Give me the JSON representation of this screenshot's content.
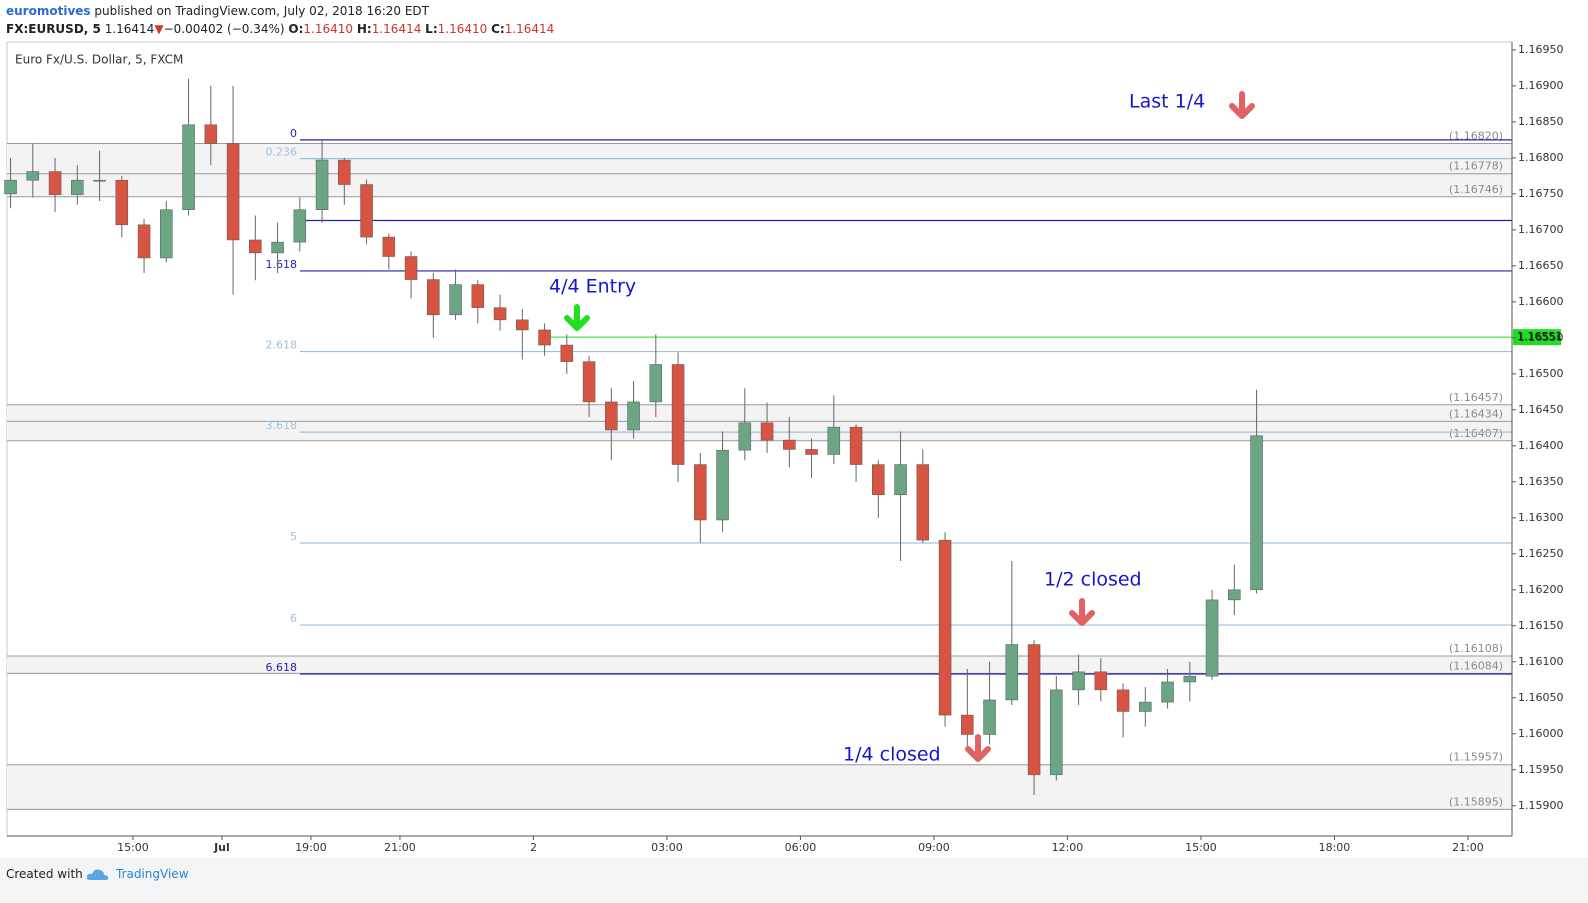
{
  "header": {
    "author": "euromotives",
    "published": "published on TradingView.com, July 02, 2018 16:20 EDT",
    "symbol": "FX:EURUSD, 5",
    "last": "1.16414",
    "change_icon": "▼",
    "change": "−0.00402 (−0.34%)",
    "ohlc": [
      {
        "label": "O:",
        "value": "1.16410"
      },
      {
        "label": "H:",
        "value": "1.16414"
      },
      {
        "label": "L:",
        "value": "1.16410"
      },
      {
        "label": "C:",
        "value": "1.16414"
      }
    ]
  },
  "chart_data": {
    "type": "candlestick",
    "title": "Euro Fx/U.S. Dollar, 5, FXCM",
    "up_color": "#6ba583",
    "down_color": "#d75442",
    "x": [
      -2.75,
      -2.25,
      -1.75,
      -1.25,
      -0.75,
      -0.25,
      0.25,
      0.75,
      1.25,
      1.75,
      2.25,
      2.75,
      3.25,
      3.75,
      4.25,
      4.75,
      5.25,
      5.75,
      6.25,
      6.75,
      7.25,
      7.75,
      8.25,
      8.75,
      9.25,
      9.75,
      10.25,
      10.75,
      11.25,
      11.75,
      12.25,
      12.75,
      13.25,
      13.75,
      14.25,
      14.75,
      15.25,
      15.75,
      16.25,
      16.75,
      17.25,
      17.75,
      18.25,
      18.75,
      19.25,
      19.75,
      20.25,
      20.75,
      21.25,
      21.75,
      22.25,
      22.75,
      23.25,
      23.75,
      24.25,
      24.75,
      25.25
    ],
    "open": [
      1.1675,
      1.16769,
      1.16781,
      1.16749,
      1.16769,
      1.16769,
      1.16707,
      1.16661,
      1.16728,
      1.16846,
      1.1682,
      1.16686,
      1.16668,
      1.16683,
      1.16728,
      1.16797,
      1.16763,
      1.1669,
      1.16663,
      1.16631,
      1.16582,
      1.16624,
      1.16592,
      1.16575,
      1.16561,
      1.1654,
      1.16517,
      1.16461,
      1.16422,
      1.16461,
      1.16513,
      1.16374,
      1.16297,
      1.16394,
      1.16432,
      1.16408,
      1.16395,
      1.16388,
      1.16426,
      1.16374,
      1.16332,
      1.16374,
      1.16269,
      1.16026,
      1.15999,
      1.16047,
      1.16124,
      1.15943,
      1.16061,
      1.16086,
      1.16061,
      1.16031,
      1.16044,
      1.16072,
      1.1608,
      1.16186,
      1.162
    ],
    "high": [
      1.168,
      1.1682,
      1.168,
      1.1679,
      1.1681,
      1.16775,
      1.16715,
      1.1674,
      1.1691,
      1.169,
      1.169,
      1.1672,
      1.1671,
      1.16745,
      1.16825,
      1.168,
      1.1677,
      1.16695,
      1.1667,
      1.1664,
      1.16645,
      1.1663,
      1.1661,
      1.1659,
      1.1657,
      1.16555,
      1.16525,
      1.1648,
      1.1649,
      1.16555,
      1.1653,
      1.1639,
      1.1642,
      1.1648,
      1.1646,
      1.1644,
      1.1641,
      1.1647,
      1.1643,
      1.1638,
      1.1642,
      1.16395,
      1.1628,
      1.1609,
      1.161,
      1.1624,
      1.1613,
      1.1608,
      1.1611,
      1.16105,
      1.1607,
      1.16065,
      1.1609,
      1.161,
      1.162,
      1.16235,
      1.16478
    ],
    "low": [
      1.1673,
      1.16745,
      1.16725,
      1.16735,
      1.1674,
      1.1669,
      1.1664,
      1.16655,
      1.1672,
      1.1679,
      1.1661,
      1.1663,
      1.1664,
      1.1667,
      1.1671,
      1.16735,
      1.1668,
      1.16645,
      1.16605,
      1.1655,
      1.16575,
      1.1657,
      1.1656,
      1.1652,
      1.16525,
      1.165,
      1.1644,
      1.1638,
      1.1641,
      1.1644,
      1.1635,
      1.16265,
      1.1628,
      1.1638,
      1.1639,
      1.1637,
      1.16355,
      1.16375,
      1.1635,
      1.163,
      1.1624,
      1.16265,
      1.1601,
      1.15975,
      1.15985,
      1.1604,
      1.15915,
      1.15935,
      1.1604,
      1.16045,
      1.15995,
      1.1601,
      1.16035,
      1.16045,
      1.16075,
      1.16165,
      1.16195
    ],
    "close": [
      1.16769,
      1.16781,
      1.16749,
      1.16769,
      1.16769,
      1.16707,
      1.16661,
      1.16728,
      1.16846,
      1.1682,
      1.16686,
      1.16668,
      1.16683,
      1.16728,
      1.16797,
      1.16763,
      1.1669,
      1.16663,
      1.16631,
      1.16582,
      1.16624,
      1.16592,
      1.16575,
      1.16561,
      1.1654,
      1.16517,
      1.16461,
      1.16422,
      1.16461,
      1.16513,
      1.16374,
      1.16297,
      1.16394,
      1.16432,
      1.16408,
      1.16395,
      1.16388,
      1.16426,
      1.16374,
      1.16332,
      1.16374,
      1.16269,
      1.16026,
      1.15999,
      1.16047,
      1.16124,
      1.15943,
      1.16061,
      1.16086,
      1.16061,
      1.16031,
      1.16044,
      1.16072,
      1.1608,
      1.16186,
      1.162,
      1.16414
    ],
    "xlim": [
      -2.83,
      30.99
    ],
    "xticks": [
      {
        "value": 0,
        "label": "15:00"
      },
      {
        "value": 2,
        "label": "Jul"
      },
      {
        "value": 4,
        "label": "19:00"
      },
      {
        "value": 6,
        "label": "21:00"
      },
      {
        "value": 9,
        "label": "2"
      },
      {
        "value": 12,
        "label": "03:00"
      },
      {
        "value": 15,
        "label": "06:00"
      },
      {
        "value": 18,
        "label": "09:00"
      },
      {
        "value": 21,
        "label": "12:00"
      },
      {
        "value": 24,
        "label": "15:00"
      },
      {
        "value": 27,
        "label": "18:00"
      },
      {
        "value": 30,
        "label": "21:00"
      }
    ],
    "ylim": [
      1.15858,
      1.16961
    ],
    "yticks": [
      {
        "value": 1.1695,
        "label": "1.16950"
      },
      {
        "value": 1.169,
        "label": "1.16900"
      },
      {
        "value": 1.1685,
        "label": "1.16850"
      },
      {
        "value": 1.168,
        "label": "1.16800"
      },
      {
        "value": 1.1675,
        "label": "1.16750"
      },
      {
        "value": 1.167,
        "label": "1.16700"
      },
      {
        "value": 1.1665,
        "label": "1.16650"
      },
      {
        "value": 1.166,
        "label": "1.16600"
      },
      {
        "value": 1.1655,
        "label": "1.16550"
      },
      {
        "value": 1.165,
        "label": "1.16500"
      },
      {
        "value": 1.1645,
        "label": "1.16450"
      },
      {
        "value": 1.164,
        "label": "1.16400"
      },
      {
        "value": 1.1635,
        "label": "1.16350"
      },
      {
        "value": 1.163,
        "label": "1.16300"
      },
      {
        "value": 1.1625,
        "label": "1.16250"
      },
      {
        "value": 1.162,
        "label": "1.16200"
      },
      {
        "value": 1.1615,
        "label": "1.16150"
      },
      {
        "value": 1.161,
        "label": "1.16100"
      },
      {
        "value": 1.1605,
        "label": "1.16050"
      },
      {
        "value": 1.16,
        "label": "1.16000"
      },
      {
        "value": 1.1595,
        "label": "1.15950"
      },
      {
        "value": 1.159,
        "label": "1.15900"
      }
    ],
    "axis_side": "right",
    "fib_levels": [
      {
        "label": "0",
        "value": 1.16825,
        "color": "#1f1fb8"
      },
      {
        "label": "0.236",
        "value": 1.16799,
        "color": "#9cc0e4"
      },
      {
        "label": null,
        "value": 1.16713,
        "color": "#1f1fb8"
      },
      {
        "label": "1.618",
        "value": 1.16643,
        "color": "#1f1fb8"
      },
      {
        "label": "2.618",
        "value": 1.16531,
        "color": "#9cc0e4"
      },
      {
        "label": "3.618",
        "value": 1.16419,
        "color": "#9cc0e4"
      },
      {
        "label": "5",
        "value": 1.16265,
        "color": "#9cc0e4"
      },
      {
        "label": "6",
        "value": 1.16151,
        "color": "#9cc0e4"
      },
      {
        "label": "6.618",
        "value": 1.16083,
        "color": "#1f1fb8"
      }
    ],
    "levels": [
      {
        "value": 1.1682,
        "label": "(1.16820)"
      },
      {
        "value": 1.16778,
        "label": "(1.16778)"
      },
      {
        "value": 1.16746,
        "label": "(1.16746)"
      },
      {
        "value": 1.16457,
        "label": "(1.16457)"
      },
      {
        "value": 1.16434,
        "label": "(1.16434)"
      },
      {
        "value": 1.16407,
        "label": "(1.16407)"
      },
      {
        "value": 1.16108,
        "label": "(1.16108)"
      },
      {
        "value": 1.16084,
        "label": "(1.16084)"
      },
      {
        "value": 1.15957,
        "label": "(1.15957)"
      },
      {
        "value": 1.15895,
        "label": "(1.15895)"
      }
    ],
    "price_line": {
      "value": 1.16551,
      "color": "#22dd22"
    },
    "annotations": [
      "Last 1/4",
      "4/4 Entry",
      "1/2 closed",
      "1/4 closed"
    ]
  },
  "footer": {
    "created": "Created with",
    "brand": "TradingView"
  }
}
